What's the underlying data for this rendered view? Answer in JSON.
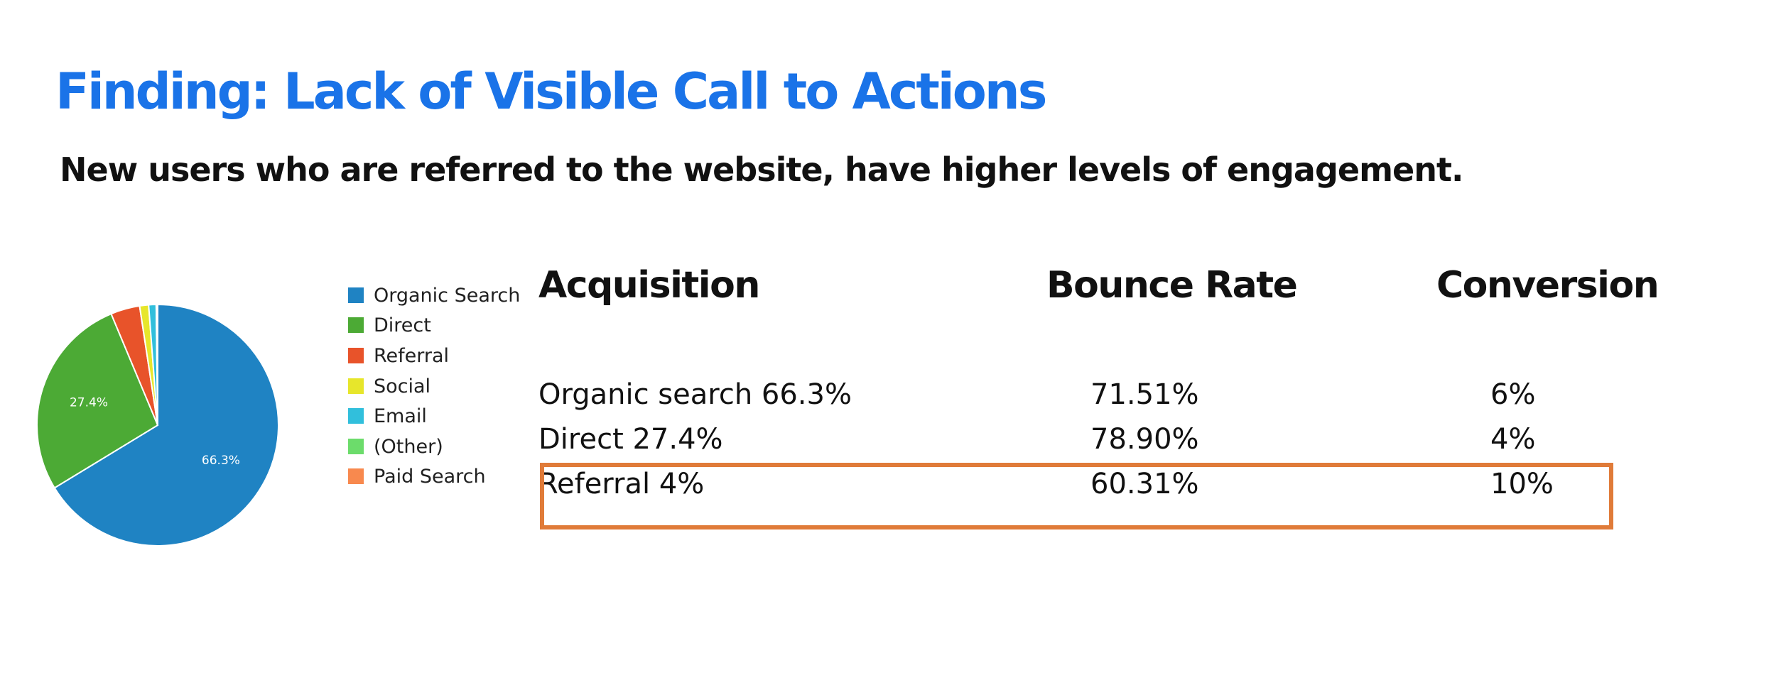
{
  "title": "Finding: Lack of Visible Call to Actions",
  "subtitle": "New users who are referred to the website, have higher levels of engagement.",
  "chart_data": {
    "type": "pie",
    "slices": [
      {
        "label": "Organic Search",
        "value": 66.3,
        "color": "#1f83c3",
        "data_label": "66.3%"
      },
      {
        "label": "Direct",
        "value": 27.4,
        "color": "#4caa35",
        "data_label": "27.4%"
      },
      {
        "label": "Referral",
        "value": 3.9,
        "color": "#e8532a",
        "data_label": ""
      },
      {
        "label": "Social",
        "value": 1.2,
        "color": "#e7e62b",
        "data_label": ""
      },
      {
        "label": "Email",
        "value": 1.0,
        "color": "#31bfdc",
        "data_label": ""
      },
      {
        "label": "(Other)",
        "value": 0.1,
        "color": "#6cdc6b",
        "data_label": ""
      },
      {
        "label": "Paid Search",
        "value": 0.1,
        "color": "#f8894e",
        "data_label": ""
      }
    ],
    "legend_position": "right"
  },
  "table": {
    "headers": [
      "Acquisition",
      "Bounce Rate",
      "Conversion"
    ],
    "rows": [
      {
        "acquisition": "Organic search 66.3%",
        "bounce_rate": "71.51%",
        "conversion": "6%",
        "highlighted": false
      },
      {
        "acquisition": "Direct 27.4%",
        "bounce_rate": "78.90%",
        "conversion": "4%",
        "highlighted": false
      },
      {
        "acquisition": "Referral 4%",
        "bounce_rate": "60.31%",
        "conversion": "10%",
        "highlighted": true
      }
    ],
    "highlight_color": "#e07b39"
  }
}
